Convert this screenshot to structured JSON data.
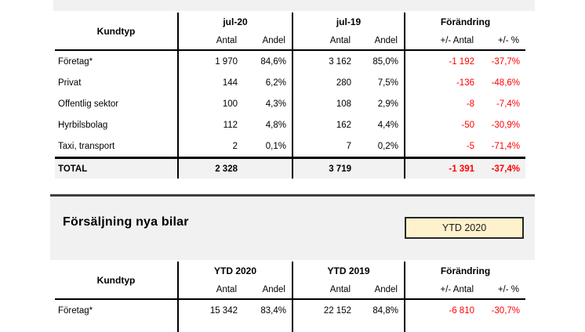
{
  "colors": {
    "negative": "#ff0000",
    "section_bg": "#f1f1f1",
    "total_bg": "#f2f2f2",
    "badge_bg": "#fdf2cc",
    "badge_border": "#262626",
    "section_line": "#3f3f3f",
    "table_line": "#000000"
  },
  "section_header": {
    "title": "Försäljning nya bilar",
    "badge_label": "YTD 2020"
  },
  "tables": {
    "monthly": {
      "corner": "Kundtyp",
      "groups": [
        "jul-20",
        "jul-19",
        "Förändring"
      ],
      "sub": [
        "Antal",
        "Andel",
        "Antal",
        "Andel",
        "+/- Antal",
        "+/- %"
      ],
      "rows": [
        [
          "Företag*",
          "1 970",
          "84,6%",
          "3 162",
          "85,0%",
          "-1 192",
          "-37,7%"
        ],
        [
          "Privat",
          "144",
          "6,2%",
          "280",
          "7,5%",
          "-136",
          "-48,6%"
        ],
        [
          "Offentlig sektor",
          "100",
          "4,3%",
          "108",
          "2,9%",
          "-8",
          "-7,4%"
        ],
        [
          "Hyrbilsbolag",
          "112",
          "4,8%",
          "162",
          "4,4%",
          "-50",
          "-30,9%"
        ],
        [
          "Taxi, transport",
          "2",
          "0,1%",
          "7",
          "0,2%",
          "-5",
          "-71,4%"
        ]
      ],
      "total": [
        "TOTAL",
        "2 328",
        "",
        "3 719",
        "",
        "-1 391",
        "-37,4%"
      ]
    },
    "ytd": {
      "corner": "Kundtyp",
      "groups": [
        "YTD 2020",
        "YTD 2019",
        "Förändring"
      ],
      "sub": [
        "Antal",
        "Andel",
        "Antal",
        "Andel",
        "+/- Antal",
        "+/- %"
      ],
      "rows": [
        [
          "Företag*",
          "15 342",
          "83,4%",
          "22 152",
          "84,8%",
          "-6 810",
          "-30,7%"
        ]
      ]
    }
  }
}
